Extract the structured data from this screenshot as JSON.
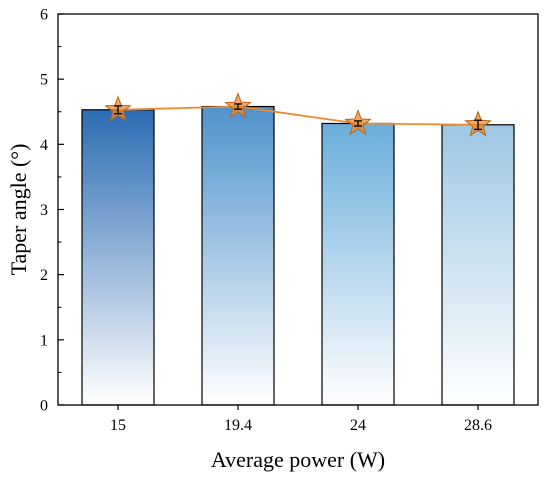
{
  "chart_data": {
    "type": "bar",
    "xlabel": "Average power (W)",
    "ylabel": "Taper angle (°)",
    "categories": [
      "15",
      "19.4",
      "24",
      "28.6"
    ],
    "series": [
      {
        "values": [
          4.53,
          4.58,
          4.32,
          4.3
        ],
        "errors": [
          0.06,
          0.04,
          0.04,
          0.07
        ]
      }
    ],
    "ylim": [
      0,
      6
    ],
    "yticks": [
      "0",
      "1",
      "2",
      "3",
      "4",
      "5",
      "6"
    ],
    "grid": false,
    "legend": "none",
    "overlay": {
      "type": "line",
      "marker": "star",
      "values": [
        4.53,
        4.58,
        4.32,
        4.3
      ]
    },
    "colors": {
      "bar_gradient_colors": [
        "#2b6cb3",
        "#4f92cc",
        "#6aaedb",
        "#9dc7e4"
      ],
      "bar_gradient_end": "#ffffff",
      "line": "#f0892e",
      "marker_fill": "#f0892e",
      "marker_stroke": "#b8651d"
    }
  }
}
